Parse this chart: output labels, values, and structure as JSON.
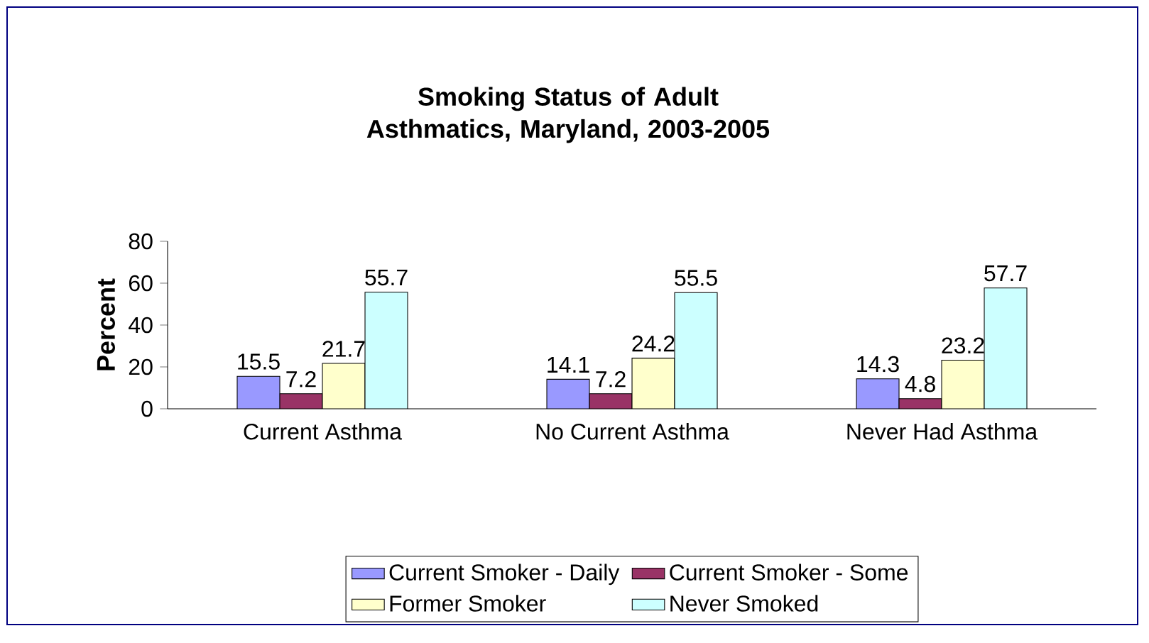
{
  "chart_data": {
    "type": "bar",
    "title": "Smoking Status of Adult Asthmatics, Maryland, 2003-2005",
    "ylabel": "Percent",
    "categories": [
      "Current Asthma",
      "No Current Asthma",
      "Never Had Asthma"
    ],
    "series": [
      {
        "name": "Current Smoker - Daily",
        "color": "#9999ff",
        "values": [
          15.5,
          14.1,
          14.3
        ]
      },
      {
        "name": "Current Smoker - Some",
        "color": "#993366",
        "values": [
          7.2,
          7.2,
          4.8
        ]
      },
      {
        "name": "Former Smoker",
        "color": "#ffffcc",
        "values": [
          21.7,
          24.2,
          23.2
        ]
      },
      {
        "name": "Never Smoked",
        "color": "#ccffff",
        "values": [
          55.7,
          55.5,
          57.7
        ]
      }
    ],
    "ylim": [
      0,
      80
    ],
    "yticks": [
      0,
      20,
      40,
      60,
      80
    ],
    "data_labels": true,
    "legend": "bottom",
    "grid": false
  }
}
